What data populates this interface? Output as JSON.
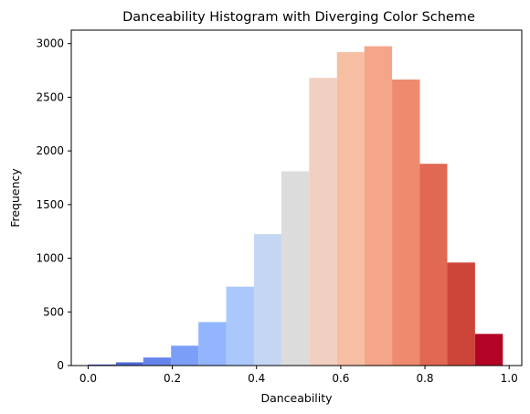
{
  "chart_data": {
    "type": "bar",
    "title": "Danceability Histogram with Diverging Color Scheme",
    "xlabel": "Danceability",
    "ylabel": "Frequency",
    "xlim": [
      -0.04,
      1.03
    ],
    "ylim": [
      0,
      3125
    ],
    "xticks": [
      0.0,
      0.2,
      0.4,
      0.6,
      0.8,
      1.0
    ],
    "xtick_labels": [
      "0.0",
      "0.2",
      "0.4",
      "0.6",
      "0.8",
      "1.0"
    ],
    "yticks": [
      0,
      500,
      1000,
      1500,
      2000,
      2500,
      3000
    ],
    "ytick_labels": [
      "0",
      "500",
      "1000",
      "1500",
      "2000",
      "2500",
      "3000"
    ],
    "grid": false,
    "colormap": "coolwarm",
    "bins": [
      {
        "x0": 0.0,
        "x1": 0.066,
        "value": 10,
        "color": "#3b4cc0"
      },
      {
        "x0": 0.066,
        "x1": 0.131,
        "value": 30,
        "color": "#4f69d9"
      },
      {
        "x0": 0.131,
        "x1": 0.197,
        "value": 75,
        "color": "#6585ec"
      },
      {
        "x0": 0.197,
        "x1": 0.262,
        "value": 185,
        "color": "#7b9ff9"
      },
      {
        "x0": 0.262,
        "x1": 0.328,
        "value": 405,
        "color": "#93b5fe"
      },
      {
        "x0": 0.328,
        "x1": 0.394,
        "value": 735,
        "color": "#abc8fd"
      },
      {
        "x0": 0.394,
        "x1": 0.459,
        "value": 1225,
        "color": "#c5d6f2"
      },
      {
        "x0": 0.459,
        "x1": 0.525,
        "value": 1810,
        "color": "#dddcdc"
      },
      {
        "x0": 0.525,
        "x1": 0.591,
        "value": 2680,
        "color": "#f0d0c1"
      },
      {
        "x0": 0.591,
        "x1": 0.656,
        "value": 2920,
        "color": "#f6bea2"
      },
      {
        "x0": 0.656,
        "x1": 0.722,
        "value": 2975,
        "color": "#f5a688"
      },
      {
        "x0": 0.722,
        "x1": 0.788,
        "value": 2665,
        "color": "#ee8a6e"
      },
      {
        "x0": 0.788,
        "x1": 0.853,
        "value": 1880,
        "color": "#e16852"
      },
      {
        "x0": 0.853,
        "x1": 0.919,
        "value": 960,
        "color": "#cd4539"
      },
      {
        "x0": 0.919,
        "x1": 0.985,
        "value": 295,
        "color": "#b40426"
      }
    ]
  }
}
